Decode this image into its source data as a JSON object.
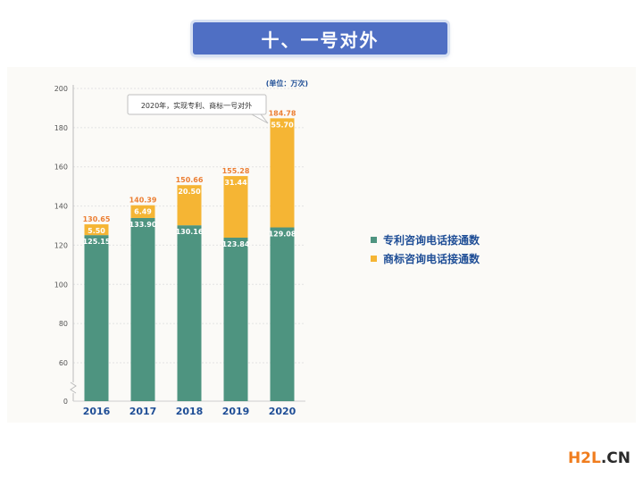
{
  "header": {
    "title": "十、一号对外"
  },
  "chart_data": {
    "type": "bar",
    "stacked": true,
    "unit_label": "(单位：万次)",
    "annotation": "2020年，实现专利、商标一号对外",
    "categories": [
      "2016",
      "2017",
      "2018",
      "2019",
      "2020"
    ],
    "series": [
      {
        "name": "专利咨询电话接通数",
        "color": "#4e9480",
        "values": [
          125.15,
          133.9,
          130.16,
          123.84,
          129.08
        ]
      },
      {
        "name": "商标咨询电话接通数",
        "color": "#f5b534",
        "values": [
          5.5,
          6.49,
          20.5,
          31.44,
          55.7
        ]
      }
    ],
    "totals": [
      130.65,
      140.39,
      150.66,
      155.28,
      184.78
    ],
    "yticks": [
      0,
      60,
      80,
      100,
      120,
      140,
      160,
      180,
      200
    ],
    "ylim": [
      50,
      200
    ],
    "axis_break": true,
    "grid": true,
    "legend_position": "right"
  },
  "watermark": {
    "brand": "H2L",
    "suffix": ".CN"
  }
}
